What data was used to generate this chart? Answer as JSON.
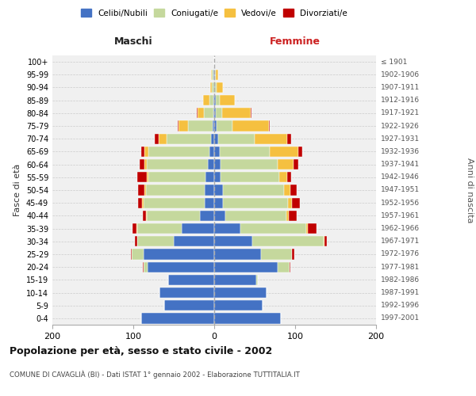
{
  "age_groups": [
    "0-4",
    "5-9",
    "10-14",
    "15-19",
    "20-24",
    "25-29",
    "30-34",
    "35-39",
    "40-44",
    "45-49",
    "50-54",
    "55-59",
    "60-64",
    "65-69",
    "70-74",
    "75-79",
    "80-84",
    "85-89",
    "90-94",
    "95-99",
    "100+"
  ],
  "birth_years": [
    "1997-2001",
    "1992-1996",
    "1987-1991",
    "1982-1986",
    "1977-1981",
    "1972-1976",
    "1967-1971",
    "1962-1966",
    "1957-1961",
    "1952-1956",
    "1947-1951",
    "1942-1946",
    "1937-1941",
    "1932-1936",
    "1927-1931",
    "1922-1926",
    "1917-1921",
    "1912-1916",
    "1907-1911",
    "1902-1906",
    "≤ 1901"
  ],
  "male": {
    "celibi": [
      90,
      62,
      68,
      57,
      82,
      87,
      50,
      40,
      18,
      12,
      12,
      11,
      8,
      6,
      4,
      2,
      1,
      1,
      0,
      1,
      0
    ],
    "coniugati": [
      0,
      0,
      0,
      0,
      5,
      15,
      45,
      55,
      65,
      75,
      72,
      70,
      75,
      75,
      55,
      30,
      12,
      5,
      3,
      2,
      0
    ],
    "vedovi": [
      0,
      0,
      0,
      0,
      0,
      0,
      0,
      1,
      1,
      2,
      2,
      2,
      3,
      5,
      10,
      12,
      8,
      8,
      2,
      1,
      0
    ],
    "divorziati": [
      0,
      0,
      0,
      0,
      1,
      1,
      3,
      5,
      4,
      5,
      8,
      12,
      6,
      4,
      5,
      1,
      1,
      0,
      0,
      0,
      0
    ]
  },
  "female": {
    "nubili": [
      82,
      60,
      65,
      52,
      78,
      58,
      47,
      32,
      14,
      11,
      11,
      8,
      8,
      7,
      5,
      3,
      2,
      2,
      1,
      1,
      0
    ],
    "coniugate": [
      0,
      0,
      0,
      2,
      15,
      38,
      88,
      82,
      75,
      80,
      75,
      72,
      70,
      62,
      45,
      20,
      8,
      5,
      2,
      1,
      0
    ],
    "vedove": [
      0,
      0,
      0,
      0,
      0,
      0,
      1,
      2,
      3,
      5,
      8,
      10,
      20,
      35,
      40,
      45,
      35,
      18,
      8,
      3,
      0
    ],
    "divorziate": [
      0,
      0,
      0,
      0,
      1,
      3,
      3,
      10,
      10,
      10,
      8,
      5,
      6,
      5,
      5,
      1,
      1,
      0,
      0,
      0,
      0
    ]
  },
  "colors": {
    "celibi": "#4472c4",
    "coniugati": "#c5d89d",
    "vedovi": "#f5c040",
    "divorziati": "#c00000"
  },
  "xlim": 200,
  "title": "Popolazione per età, sesso e stato civile - 2002",
  "subtitle": "COMUNE DI CAVAGLIÀ (BI) - Dati ISTAT 1° gennaio 2002 - Elaborazione TUTTITALIA.IT",
  "xlabel_left": "Maschi",
  "xlabel_right": "Femmine",
  "ylabel_left": "Fasce di età",
  "ylabel_right": "Anni di nascita",
  "legend_labels": [
    "Celibi/Nubili",
    "Coniugati/e",
    "Vedovi/e",
    "Divorziati/e"
  ]
}
